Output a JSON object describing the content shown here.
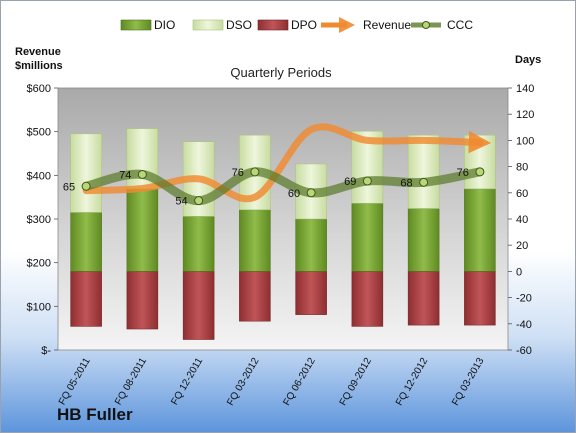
{
  "company": "HB Fuller",
  "chart_data": {
    "type": "bar",
    "title": "Quarterly Periods",
    "categories": [
      "FQ 05-2011",
      "FQ 08-2011",
      "FQ 12-2011",
      "FQ 03-2012",
      "FQ 06-2012",
      "FQ 09-2012",
      "FQ 12-2012",
      "FQ 03-2013"
    ],
    "y_left": {
      "title_line1": "Revenue",
      "title_line2": "$millions",
      "range": [
        0,
        600
      ],
      "ticks": [
        0,
        100,
        200,
        300,
        400,
        500,
        600
      ],
      "tick_labels": [
        "$-",
        "$100",
        "$200",
        "$300",
        "$400",
        "$500",
        "$600"
      ]
    },
    "y_right": {
      "title": "Days",
      "range": [
        -60,
        140
      ],
      "ticks": [
        -60,
        -40,
        -20,
        0,
        20,
        40,
        60,
        80,
        100,
        120,
        140
      ],
      "tick_labels": [
        "-60",
        "-40",
        "-20",
        "0",
        "20",
        "40",
        "60",
        "80",
        "100",
        "120",
        "140"
      ]
    },
    "series": [
      {
        "name": "DIO",
        "axis": "right",
        "kind": "stacked-bar",
        "values": [
          45,
          63,
          42,
          47,
          40,
          52,
          48,
          63
        ],
        "color": "#7ea83e"
      },
      {
        "name": "DSO",
        "axis": "right",
        "kind": "stacked-bar",
        "values": [
          60,
          46,
          57,
          57,
          42,
          55,
          56,
          41
        ],
        "color": "#e2efc8"
      },
      {
        "name": "DPO",
        "axis": "right",
        "kind": "stacked-bar-negative",
        "values": [
          -42,
          -44,
          -52,
          -38,
          -33,
          -42,
          -41,
          -41
        ],
        "color": "#b84a4d"
      },
      {
        "name": "Revenue",
        "axis": "left",
        "kind": "line",
        "values": [
          365,
          370,
          392,
          350,
          505,
          480,
          480,
          475
        ],
        "color": "#f08a30"
      },
      {
        "name": "CCC",
        "axis": "right",
        "kind": "line-marker",
        "values": [
          65,
          74,
          54,
          76,
          60,
          69,
          68,
          76
        ],
        "labels": [
          "65",
          "74",
          "54",
          "76",
          "60",
          "69",
          "68",
          "76"
        ],
        "color": "#5a7a2a"
      }
    ],
    "legend": {
      "position": "top"
    },
    "grid": false
  }
}
